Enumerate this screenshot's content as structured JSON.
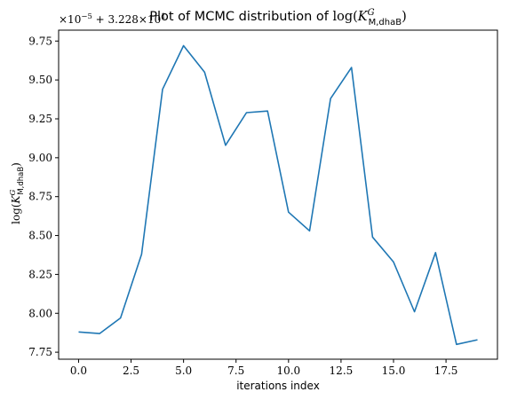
{
  "chart_data": {
    "type": "line",
    "title": "Plot of MCMC distribution of log(K^G_M,dhaB)",
    "title_parts": {
      "prefix": "Plot of MCMC distribution of ",
      "func": "log(",
      "var": "K",
      "sup": "G",
      "sub": "M,dhaB",
      "close": ")"
    },
    "xlabel": "iterations index",
    "ylabel": "log(K^G_M,dhaB)",
    "ylabel_parts": {
      "func": "log(",
      "var": "K",
      "sup": "G",
      "sub": "M,dhaB",
      "close": ")"
    },
    "offset_text": "×10⁻⁵ + 3.228×10¹",
    "offset_parts": {
      "a": "×10",
      "a_exp": "−5",
      "b": " + 3.228×10",
      "b_exp": "1"
    },
    "xlim": [
      -0.95,
      19.95
    ],
    "ylim": [
      7.705,
      9.82
    ],
    "xticks": [
      0,
      2.5,
      5,
      7.5,
      10,
      12.5,
      15,
      17.5
    ],
    "xtick_labels": [
      "0.0",
      "2.5",
      "5.0",
      "7.5",
      "10.0",
      "12.5",
      "15.0",
      "17.5"
    ],
    "yticks": [
      7.75,
      8.0,
      8.25,
      8.5,
      8.75,
      9.0,
      9.25,
      9.5,
      9.75
    ],
    "ytick_labels": [
      "7.75",
      "8.00",
      "8.25",
      "8.50",
      "8.75",
      "9.00",
      "9.25",
      "9.50",
      "9.75"
    ],
    "grid": false,
    "series": [
      {
        "color": "#1f77b4",
        "x": [
          0,
          1,
          2,
          3,
          4,
          5,
          6,
          7,
          8,
          9,
          10,
          11,
          12,
          13,
          14,
          15,
          16,
          17,
          18,
          19
        ],
        "y": [
          7.88,
          7.87,
          7.97,
          8.38,
          9.44,
          9.72,
          9.55,
          9.08,
          9.29,
          9.3,
          8.65,
          8.53,
          9.38,
          9.58,
          8.49,
          8.33,
          8.01,
          8.39,
          7.8,
          7.83
        ]
      }
    ]
  }
}
